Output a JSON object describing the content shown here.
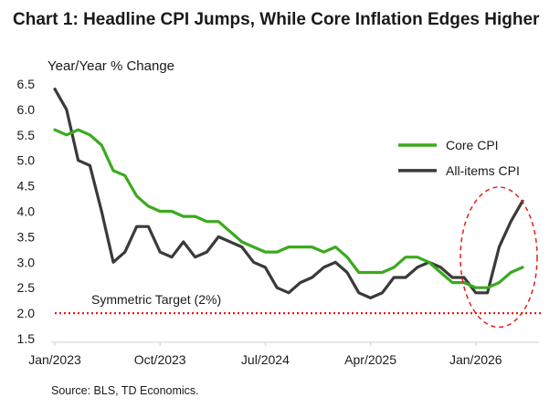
{
  "chart_data": {
    "type": "line",
    "title": "Chart 1: Headline CPI Jumps, While Core Inflation Edges Higher",
    "ylabel": "Year/Year % Change",
    "xlabel": "",
    "source": "Source: BLS, TD Economics.",
    "ylim": [
      1.5,
      6.5
    ],
    "yticks": [
      "1.5",
      "2.0",
      "2.5",
      "3.0",
      "3.5",
      "4.0",
      "4.5",
      "5.0",
      "5.5",
      "6.0",
      "6.5"
    ],
    "xticks": [
      "Jan/2023",
      "Oct/2023",
      "Jul/2024",
      "Apr/2025",
      "Jan/2026"
    ],
    "x_start": "Jan/2023",
    "legend_position": "right",
    "grid": false,
    "series": [
      {
        "name": "Core CPI",
        "color": "#3aaa1e",
        "values": [
          5.6,
          5.5,
          5.6,
          5.5,
          5.3,
          4.8,
          4.7,
          4.3,
          4.1,
          4.0,
          4.0,
          3.9,
          3.9,
          3.8,
          3.8,
          3.6,
          3.4,
          3.3,
          3.2,
          3.2,
          3.3,
          3.3,
          3.3,
          3.2,
          3.3,
          3.1,
          2.8,
          2.8,
          2.8,
          2.9,
          3.1,
          3.1,
          3.0,
          2.8,
          2.6,
          2.6,
          2.5,
          2.5,
          2.6,
          2.8,
          2.9
        ]
      },
      {
        "name": "All-items CPI",
        "color": "#3a3a3a",
        "values": [
          6.4,
          6.0,
          5.0,
          4.9,
          4.0,
          3.0,
          3.2,
          3.7,
          3.7,
          3.2,
          3.1,
          3.4,
          3.1,
          3.2,
          3.5,
          3.4,
          3.3,
          3.0,
          2.9,
          2.5,
          2.4,
          2.6,
          2.7,
          2.9,
          3.0,
          2.8,
          2.4,
          2.3,
          2.4,
          2.7,
          2.7,
          2.9,
          3.0,
          2.9,
          2.7,
          2.7,
          2.4,
          2.4,
          3.3,
          3.8,
          4.2
        ]
      }
    ],
    "annotations": [
      {
        "text": "Symmetric Target (2%)",
        "y": 2.0,
        "style": "dotted",
        "color": "#e0201e"
      }
    ],
    "highlight": {
      "shape": "dashed-ellipse",
      "color": "#e0201e"
    }
  }
}
